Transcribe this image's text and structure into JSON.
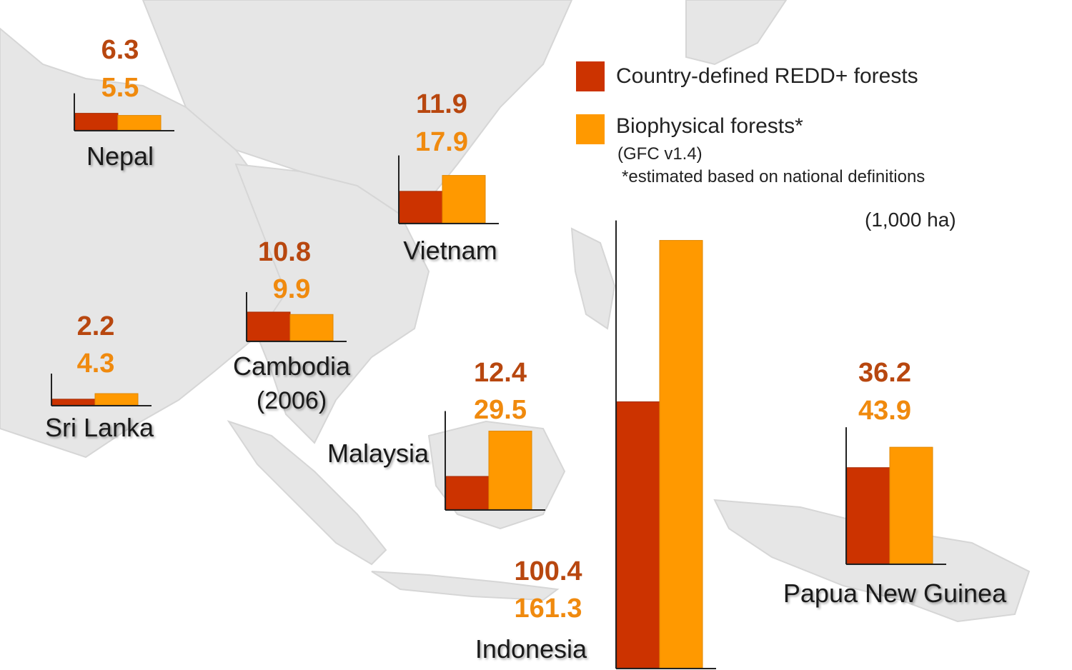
{
  "chart_data": {
    "type": "bar",
    "unit": "(1,000 ha)",
    "series": [
      {
        "name": "Country-defined REDD+ forests",
        "color": "#CC3300"
      },
      {
        "name": "Biophysical forests*",
        "color": "#FF9900"
      }
    ],
    "legend": {
      "note_1": "(GFC v1.4)",
      "note_2": "*estimated based on national definitions"
    },
    "countries": [
      {
        "name": "Nepal",
        "sub": "",
        "values": [
          6.3,
          5.5
        ],
        "labels": [
          "6.3",
          "5.5"
        ]
      },
      {
        "name": "Vietnam",
        "sub": "",
        "values": [
          11.9,
          17.9
        ],
        "labels": [
          "11.9",
          "17.9"
        ]
      },
      {
        "name": "Cambodia",
        "sub": "(2006)",
        "values": [
          10.8,
          9.9
        ],
        "labels": [
          "10.8",
          "9.9"
        ]
      },
      {
        "name": "Sri Lanka",
        "sub": "",
        "values": [
          2.2,
          4.3
        ],
        "labels": [
          "2.2",
          "4.3"
        ]
      },
      {
        "name": "Malaysia",
        "sub": "",
        "values": [
          12.4,
          29.5
        ],
        "labels": [
          "12.4",
          "29.5"
        ]
      },
      {
        "name": "Indonesia",
        "sub": "",
        "values": [
          100.4,
          161.3
        ],
        "labels": [
          "100.4",
          "161.3"
        ]
      },
      {
        "name": "Papua New Guinea",
        "sub": "",
        "values": [
          36.2,
          43.9
        ],
        "labels": [
          "36.2",
          "43.9"
        ]
      }
    ]
  }
}
